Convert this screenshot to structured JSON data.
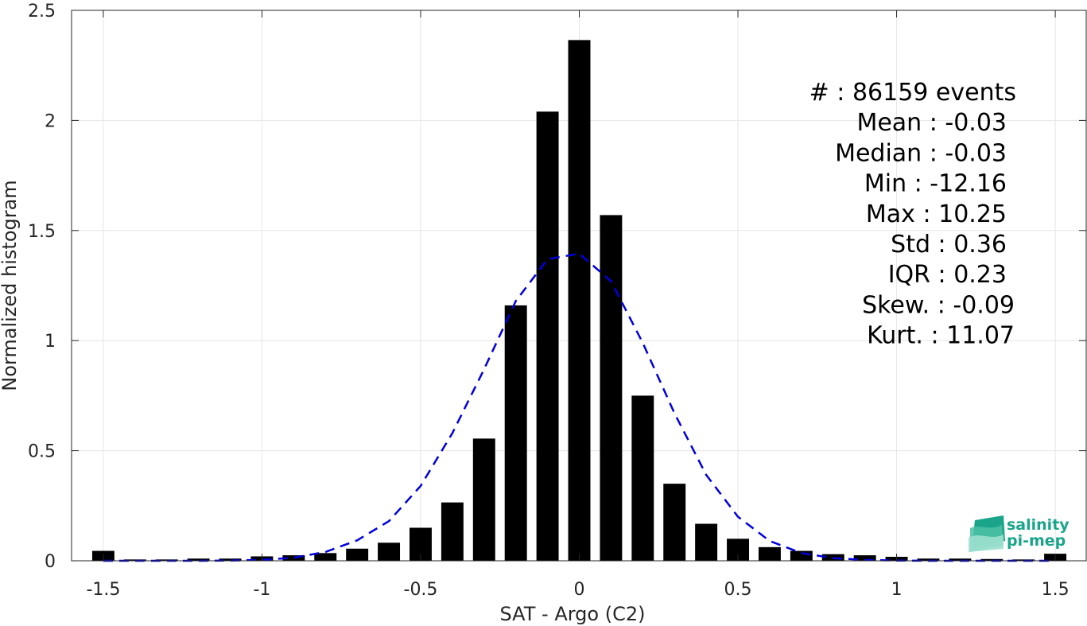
{
  "chart_data": {
    "type": "bar",
    "xlabel": "SAT - Argo (C2)",
    "ylabel": "Normalized histogram",
    "xlim": [
      -1.6,
      1.6
    ],
    "ylim": [
      0,
      2.5
    ],
    "x_ticks": [
      -1.5,
      -1,
      -0.5,
      0,
      0.5,
      1,
      1.5
    ],
    "x_tick_labels": [
      "-1.5",
      "-1",
      "-0.5",
      "0",
      "0.5",
      "1",
      "1.5"
    ],
    "y_ticks": [
      0,
      0.5,
      1,
      1.5,
      2,
      2.5
    ],
    "y_tick_labels": [
      "0",
      "0.5",
      "1",
      "1.5",
      "2",
      "2.5"
    ],
    "grid": true,
    "bar_width": 0.07,
    "series": [
      {
        "type": "bar",
        "color": "#000000",
        "x": [
          -1.5,
          -1.4,
          -1.3,
          -1.2,
          -1.1,
          -1.0,
          -0.9,
          -0.8,
          -0.7,
          -0.6,
          -0.5,
          -0.4,
          -0.3,
          -0.2,
          -0.1,
          0.0,
          0.1,
          0.2,
          0.3,
          0.4,
          0.5,
          0.6,
          0.7,
          0.8,
          0.9,
          1.0,
          1.1,
          1.2,
          1.3,
          1.4,
          1.5
        ],
        "values": [
          0.045,
          0.006,
          0.006,
          0.01,
          0.01,
          0.02,
          0.025,
          0.035,
          0.055,
          0.082,
          0.15,
          0.265,
          0.555,
          1.16,
          2.04,
          2.365,
          1.57,
          0.75,
          0.35,
          0.168,
          0.1,
          0.062,
          0.045,
          0.03,
          0.025,
          0.018,
          0.01,
          0.01,
          0.008,
          0.006,
          0.032
        ]
      },
      {
        "type": "line",
        "style": "dashed",
        "color": "#0000dd",
        "x": [
          -1.5,
          -1.4,
          -1.3,
          -1.2,
          -1.1,
          -1.0,
          -0.9,
          -0.8,
          -0.7,
          -0.6,
          -0.5,
          -0.4,
          -0.3,
          -0.2,
          -0.1,
          0.0,
          0.1,
          0.2,
          0.3,
          0.4,
          0.5,
          0.6,
          0.7,
          0.8,
          0.9,
          1.0,
          1.1,
          1.2,
          1.3,
          1.4,
          1.5
        ],
        "values": [
          0.0,
          0.0,
          0.0,
          0.0,
          0.001,
          0.004,
          0.014,
          0.04,
          0.093,
          0.18,
          0.34,
          0.58,
          0.87,
          1.18,
          1.37,
          1.395,
          1.27,
          0.99,
          0.67,
          0.39,
          0.2,
          0.09,
          0.035,
          0.012,
          0.004,
          0.001,
          0.0,
          0.0,
          0.0,
          0.0,
          0.0
        ]
      }
    ],
    "stats": [
      "#  : 86159 events",
      "Mean : -0.03",
      "Median : -0.03",
      "Min : -12.16",
      "Max : 10.25",
      "Std : 0.36",
      "IQR : 0.23",
      "Skew. : -0.09",
      "Kurt. : 11.07"
    ]
  },
  "logo": {
    "line1": "salinity",
    "line2": "pi-mep",
    "color": "#1aa58a"
  }
}
